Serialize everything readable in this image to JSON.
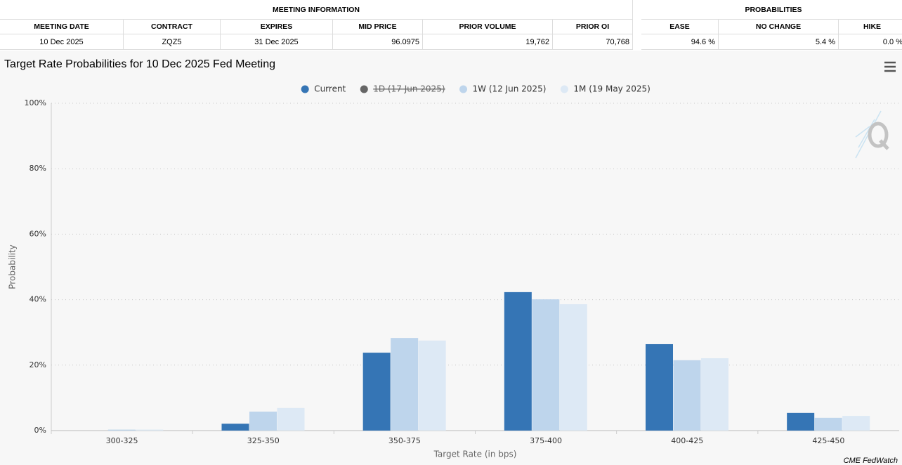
{
  "meeting_information": {
    "title": "MEETING INFORMATION",
    "columns": [
      "MEETING DATE",
      "CONTRACT",
      "EXPIRES",
      "MID PRICE",
      "PRIOR VOLUME",
      "PRIOR OI"
    ],
    "row": [
      "10 Dec 2025",
      "ZQZ5",
      "31 Dec 2025",
      "96.0975",
      "19,762",
      "70,768"
    ]
  },
  "probabilities": {
    "title": "PROBABILITIES",
    "columns": [
      "EASE",
      "NO CHANGE",
      "HIKE"
    ],
    "row": [
      "94.6 %",
      "5.4 %",
      "0.0 %"
    ]
  },
  "chart_data": {
    "type": "bar",
    "title": "Target Rate Probabilities for 10 Dec 2025 Fed Meeting",
    "x_label": "Target Rate (in bps)",
    "y_label": "Probability",
    "credit": "CME FedWatch",
    "categories": [
      "300-325",
      "325-350",
      "350-375",
      "375-400",
      "400-425",
      "425-450"
    ],
    "series": [
      {
        "name": "Current",
        "color": "#3575b5",
        "visible": true,
        "values": [
          0,
          2.1,
          23.8,
          42.3,
          26.4,
          5.4
        ]
      },
      {
        "name": "1D (17 Jun 2025)",
        "color": "#666666",
        "visible": false,
        "values": [
          null,
          null,
          null,
          null,
          null,
          null
        ]
      },
      {
        "name": "1W (12 Jun 2025)",
        "color": "#bed5ec",
        "visible": true,
        "values": [
          0.3,
          5.8,
          28.3,
          40.1,
          21.5,
          3.9
        ]
      },
      {
        "name": "1M (19 May 2025)",
        "color": "#dde9f5",
        "visible": true,
        "values": [
          0.3,
          6.9,
          27.5,
          38.6,
          22.1,
          4.5
        ]
      }
    ],
    "ylim": [
      0,
      100
    ],
    "yticks": [
      {
        "value": 0,
        "label": "0%"
      },
      {
        "value": 20,
        "label": "20%"
      },
      {
        "value": 40,
        "label": "40%"
      },
      {
        "value": 60,
        "label": "60%"
      },
      {
        "value": 80,
        "label": "80%"
      },
      {
        "value": 100,
        "label": "100%"
      }
    ],
    "grid": true,
    "legend": "top"
  }
}
